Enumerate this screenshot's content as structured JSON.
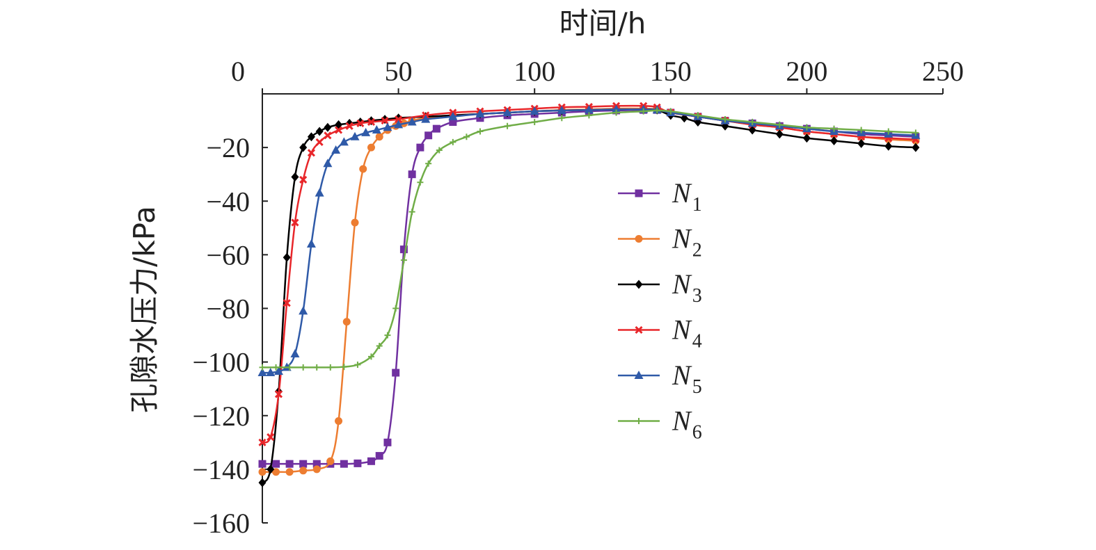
{
  "chart_data": {
    "type": "line",
    "xlabel": "时间/h",
    "ylabel": "孔隙水压力/kPa",
    "xlim": [
      0,
      250
    ],
    "ylim": [
      -160,
      0
    ],
    "x_ticks": [
      0,
      50,
      100,
      150,
      200,
      250
    ],
    "y_ticks": [
      -20,
      -40,
      -60,
      -80,
      -100,
      -120,
      -140,
      -160
    ],
    "x_tick_labels": [
      "0",
      "50",
      "100",
      "150",
      "200",
      "250"
    ],
    "y_tick_labels": [
      "−20",
      "−40",
      "−60",
      "−80",
      "−100",
      "−120",
      "−140",
      "−160"
    ],
    "x_axis_position": "top",
    "grid": false,
    "legend_position": "center-right",
    "series": [
      {
        "name": "N",
        "subscript": "1",
        "color": "#7030a0",
        "marker": "square",
        "x": [
          0,
          5,
          10,
          15,
          20,
          25,
          30,
          35,
          40,
          43,
          46,
          49,
          52,
          55,
          58,
          61,
          64,
          70,
          80,
          90,
          100,
          110,
          120,
          130,
          140,
          145,
          150,
          160,
          170,
          180,
          190,
          200,
          210,
          220,
          230,
          240
        ],
        "y": [
          -138,
          -138,
          -138,
          -138,
          -138,
          -138,
          -138,
          -137.8,
          -137,
          -135,
          -130,
          -104,
          -58,
          -30,
          -20,
          -15.5,
          -13,
          -10.5,
          -9,
          -8,
          -7.5,
          -7,
          -6.5,
          -6.2,
          -6,
          -6,
          -7,
          -8.5,
          -10,
          -11,
          -12,
          -13,
          -14,
          -15,
          -15.5,
          -16
        ]
      },
      {
        "name": "N",
        "subscript": "2",
        "color": "#ed7d31",
        "marker": "circle",
        "x": [
          0,
          5,
          10,
          15,
          20,
          25,
          28,
          31,
          34,
          37,
          40,
          43,
          46,
          49,
          52,
          55,
          60,
          70,
          80,
          90,
          100,
          110,
          120,
          130,
          140,
          145,
          150,
          160,
          170,
          180,
          190,
          200,
          210,
          220,
          230,
          240
        ],
        "y": [
          -141,
          -141,
          -141,
          -140.5,
          -140,
          -137,
          -122,
          -85,
          -48,
          -28,
          -20,
          -16,
          -13.5,
          -12,
          -11,
          -10,
          -9,
          -8,
          -7.5,
          -7,
          -6.5,
          -6,
          -5.8,
          -5.5,
          -5.5,
          -5.8,
          -7,
          -8.5,
          -10,
          -11.5,
          -12.5,
          -14,
          -15,
          -16,
          -17,
          -17.5
        ]
      },
      {
        "name": "N",
        "subscript": "3",
        "color": "#000000",
        "marker": "diamond",
        "x": [
          0,
          3,
          6,
          9,
          12,
          15,
          18,
          21,
          24,
          28,
          32,
          36,
          40,
          45,
          50,
          60,
          70,
          80,
          90,
          100,
          110,
          120,
          130,
          140,
          145,
          150,
          155,
          160,
          170,
          180,
          190,
          200,
          210,
          220,
          230,
          240
        ],
        "y": [
          -145,
          -140,
          -111,
          -61,
          -31,
          -20,
          -16,
          -14,
          -12.5,
          -11.5,
          -11,
          -10.5,
          -10,
          -9.5,
          -9,
          -8.5,
          -8,
          -7.5,
          -7,
          -6.5,
          -6.2,
          -6,
          -5.8,
          -5.8,
          -6,
          -8,
          -9,
          -10.5,
          -12,
          -13.5,
          -15,
          -16.5,
          -17.5,
          -18.5,
          -19.5,
          -20
        ]
      },
      {
        "name": "N",
        "subscript": "4",
        "color": "#e8262a",
        "marker": "x",
        "x": [
          0,
          3,
          6,
          9,
          12,
          15,
          18,
          21,
          24,
          28,
          32,
          36,
          40,
          45,
          50,
          60,
          70,
          80,
          90,
          100,
          110,
          120,
          130,
          140,
          145,
          150,
          160,
          170,
          180,
          190,
          200,
          210,
          220,
          230,
          240
        ],
        "y": [
          -130,
          -128,
          -112,
          -78,
          -48,
          -32,
          -22,
          -18,
          -15.5,
          -13.5,
          -12,
          -11,
          -10.5,
          -10,
          -9.5,
          -8,
          -7,
          -6.5,
          -6,
          -5.5,
          -5,
          -4.8,
          -4.5,
          -4.5,
          -5,
          -7,
          -8.5,
          -10,
          -11.5,
          -12.5,
          -14,
          -15,
          -16,
          -16.5,
          -17
        ]
      },
      {
        "name": "N",
        "subscript": "5",
        "color": "#2f5aa8",
        "marker": "triangle",
        "x": [
          0,
          3,
          6,
          9,
          12,
          15,
          18,
          21,
          24,
          27,
          30,
          34,
          38,
          42,
          46,
          50,
          55,
          60,
          70,
          80,
          90,
          100,
          110,
          120,
          130,
          140,
          145,
          150,
          160,
          170,
          180,
          190,
          200,
          210,
          220,
          230,
          240
        ],
        "y": [
          -104,
          -104,
          -103.5,
          -102,
          -97,
          -81,
          -56,
          -37,
          -26,
          -21,
          -18,
          -16,
          -14.5,
          -13.5,
          -12.5,
          -11.5,
          -10.5,
          -9.5,
          -8.5,
          -7.5,
          -7,
          -6.5,
          -6.2,
          -6,
          -5.8,
          -5.8,
          -6,
          -7,
          -8.5,
          -10,
          -11,
          -12,
          -13,
          -14,
          -14.5,
          -15,
          -15.5
        ]
      },
      {
        "name": "N",
        "subscript": "6",
        "color": "#70ad47",
        "marker": "plus",
        "x": [
          0,
          5,
          10,
          15,
          20,
          25,
          30,
          35,
          40,
          43,
          46,
          49,
          52,
          55,
          58,
          61,
          65,
          70,
          75,
          80,
          90,
          100,
          110,
          120,
          130,
          140,
          145,
          150,
          160,
          170,
          180,
          190,
          200,
          210,
          220,
          230,
          240
        ],
        "y": [
          -102,
          -102,
          -102,
          -102,
          -102,
          -102,
          -101.8,
          -101,
          -98,
          -94,
          -90,
          -80,
          -62,
          -44,
          -33,
          -26,
          -21,
          -18,
          -16,
          -14,
          -12,
          -10.5,
          -9,
          -8,
          -7,
          -6.5,
          -6.2,
          -6.5,
          -8,
          -9.5,
          -10.5,
          -11.5,
          -12.5,
          -13,
          -13.5,
          -14,
          -14.5
        ]
      }
    ]
  }
}
